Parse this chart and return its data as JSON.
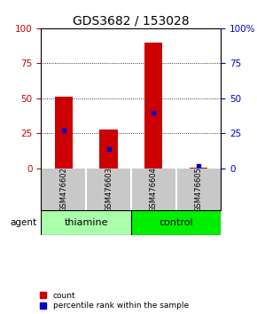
{
  "title": "GDS3682 / 153028",
  "samples": [
    "GSM476602",
    "GSM476603",
    "GSM476604",
    "GSM476605"
  ],
  "count_values": [
    51,
    28,
    90,
    0.5
  ],
  "percentile_values": [
    27,
    14,
    40,
    2
  ],
  "ylim": [
    0,
    100
  ],
  "yticks": [
    0,
    25,
    50,
    75,
    100
  ],
  "ytick_labels_left": [
    "0",
    "25",
    "50",
    "75",
    "100"
  ],
  "ytick_labels_right": [
    "0",
    "25",
    "50",
    "75",
    "100%"
  ],
  "groups": [
    {
      "label": "thiamine",
      "samples": [
        0,
        1
      ],
      "color": "#aaffaa"
    },
    {
      "label": "control",
      "samples": [
        2,
        3
      ],
      "color": "#00ee00"
    }
  ],
  "bar_color": "#cc0000",
  "percentile_color": "#0000cc",
  "left_axis_color": "#cc0000",
  "right_axis_color": "#0000cc",
  "bar_width": 0.4,
  "background_color": "#ffffff",
  "gray_box_color": "#c8c8c8",
  "grid_color": "#000000",
  "grid_ticks": [
    25,
    50,
    75
  ],
  "title_fontsize": 10,
  "tick_fontsize": 7.5,
  "sample_fontsize": 6,
  "group_fontsize": 8,
  "legend_fontsize": 6.5
}
